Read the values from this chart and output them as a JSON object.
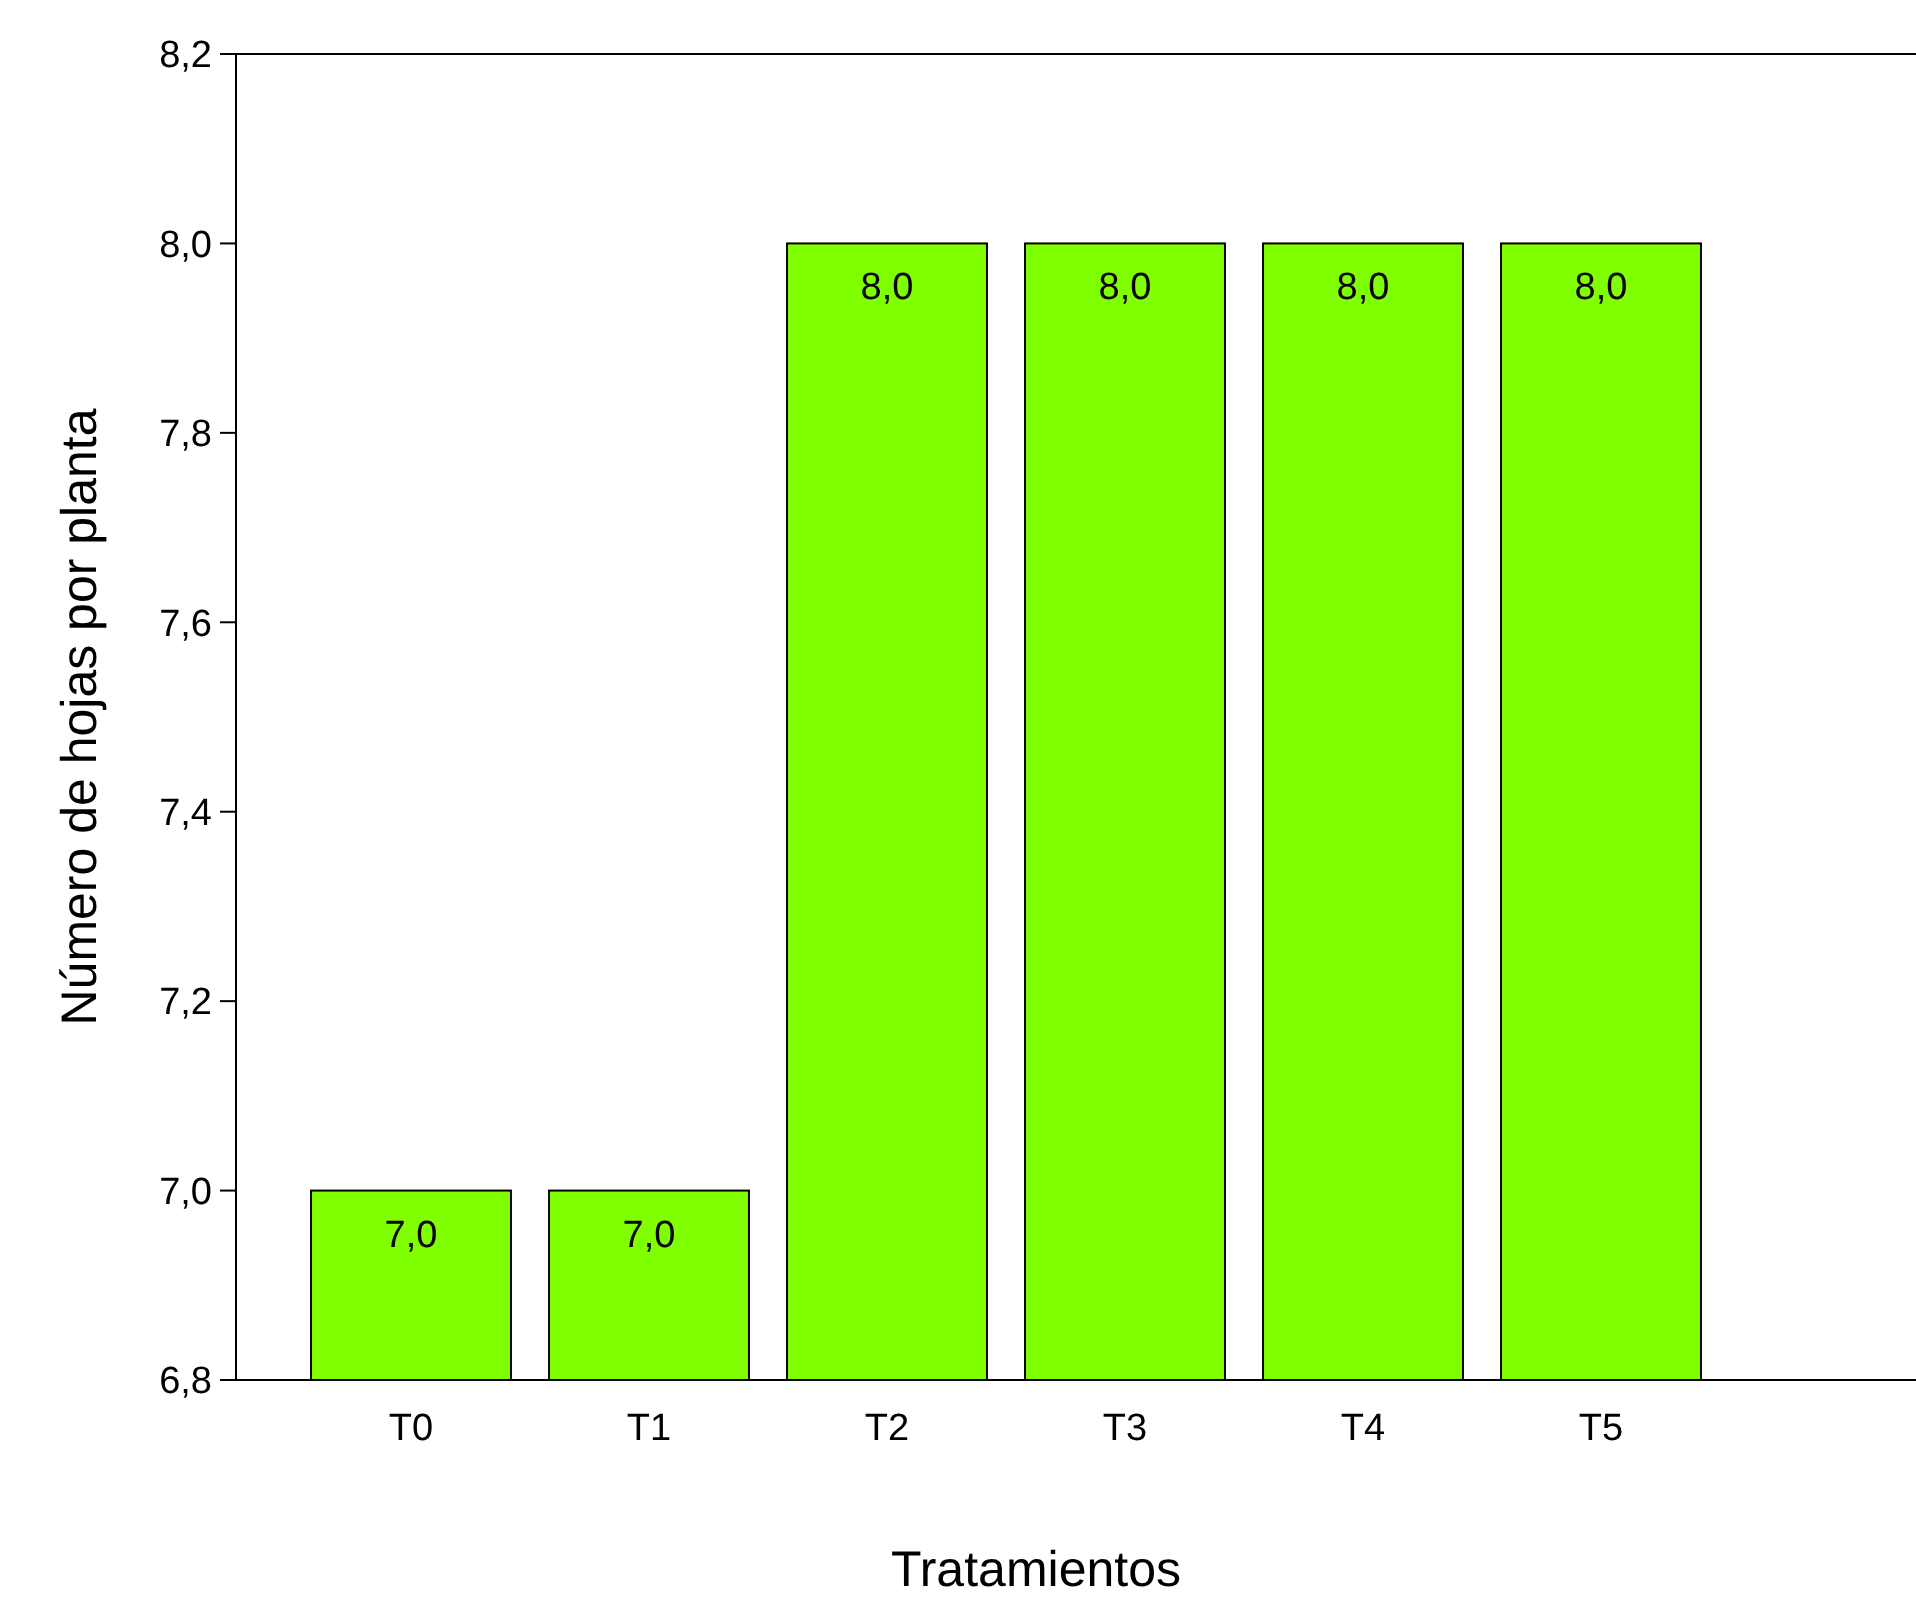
{
  "chart_data": {
    "type": "bar",
    "xlabel": "Tratamientos",
    "ylabel": "Número de hojas por planta",
    "categories": [
      "T0",
      "T1",
      "T2",
      "T3",
      "T4",
      "T5"
    ],
    "values": [
      7.0,
      7.0,
      8.0,
      8.0,
      8.0,
      8.0
    ],
    "value_labels": [
      "7,0",
      "7,0",
      "8,0",
      "8,0",
      "8,0",
      "8,0"
    ],
    "color": "#80ff00",
    "ylim": [
      6.8,
      8.2
    ],
    "yticks": [
      {
        "value": 6.8,
        "label": "6,8"
      },
      {
        "value": 7.0,
        "label": "7,0"
      },
      {
        "value": 7.2,
        "label": "7,2"
      },
      {
        "value": 7.4,
        "label": "7,4"
      },
      {
        "value": 7.6,
        "label": "7,6"
      },
      {
        "value": 7.8,
        "label": "7,8"
      },
      {
        "value": 8.0,
        "label": "8,0"
      },
      {
        "value": 8.2,
        "label": "8,2"
      }
    ],
    "grid": false
  }
}
